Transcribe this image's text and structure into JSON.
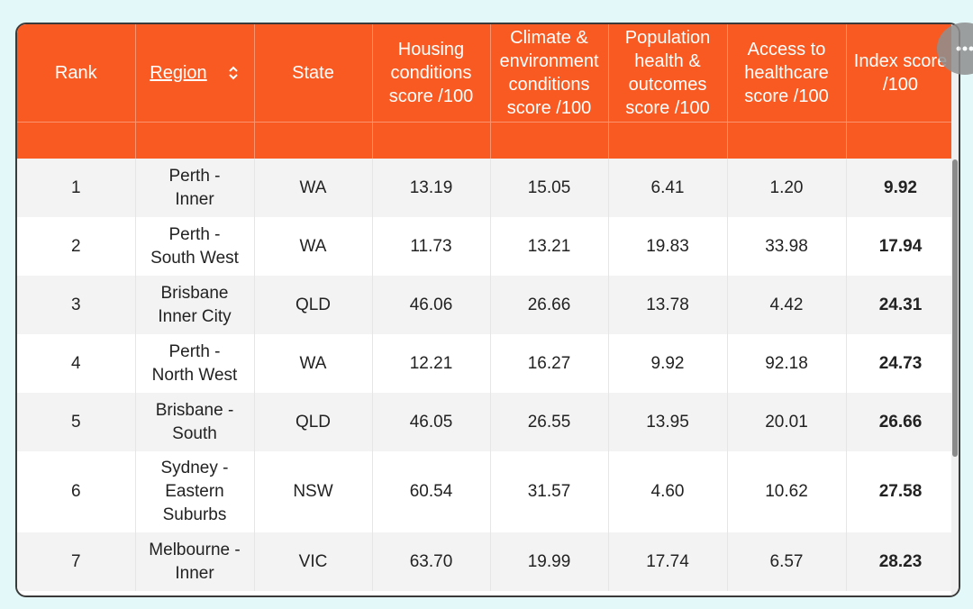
{
  "table": {
    "columns": [
      "Rank",
      "Region",
      "State",
      "Housing conditions score /100",
      "Climate & environment conditions score /100",
      "Population health & outcomes score /100",
      "Access to healthcare score /100",
      "Index score /100"
    ],
    "rows": [
      [
        "1",
        "Perth - Inner",
        "WA",
        "13.19",
        "15.05",
        "6.41",
        "1.20",
        "9.92"
      ],
      [
        "2",
        "Perth - South West",
        "WA",
        "11.73",
        "13.21",
        "19.83",
        "33.98",
        "17.94"
      ],
      [
        "3",
        "Brisbane Inner City",
        "QLD",
        "46.06",
        "26.66",
        "13.78",
        "4.42",
        "24.31"
      ],
      [
        "4",
        "Perth - North West",
        "WA",
        "12.21",
        "16.27",
        "9.92",
        "92.18",
        "24.73"
      ],
      [
        "5",
        "Brisbane - South",
        "QLD",
        "46.05",
        "26.55",
        "13.95",
        "20.01",
        "26.66"
      ],
      [
        "6",
        "Sydney - Eastern Suburbs",
        "NSW",
        "60.54",
        "31.57",
        "4.60",
        "10.62",
        "27.58"
      ],
      [
        "7",
        "Melbourne - Inner",
        "VIC",
        "63.70",
        "19.99",
        "17.74",
        "6.57",
        "28.23"
      ]
    ]
  }
}
